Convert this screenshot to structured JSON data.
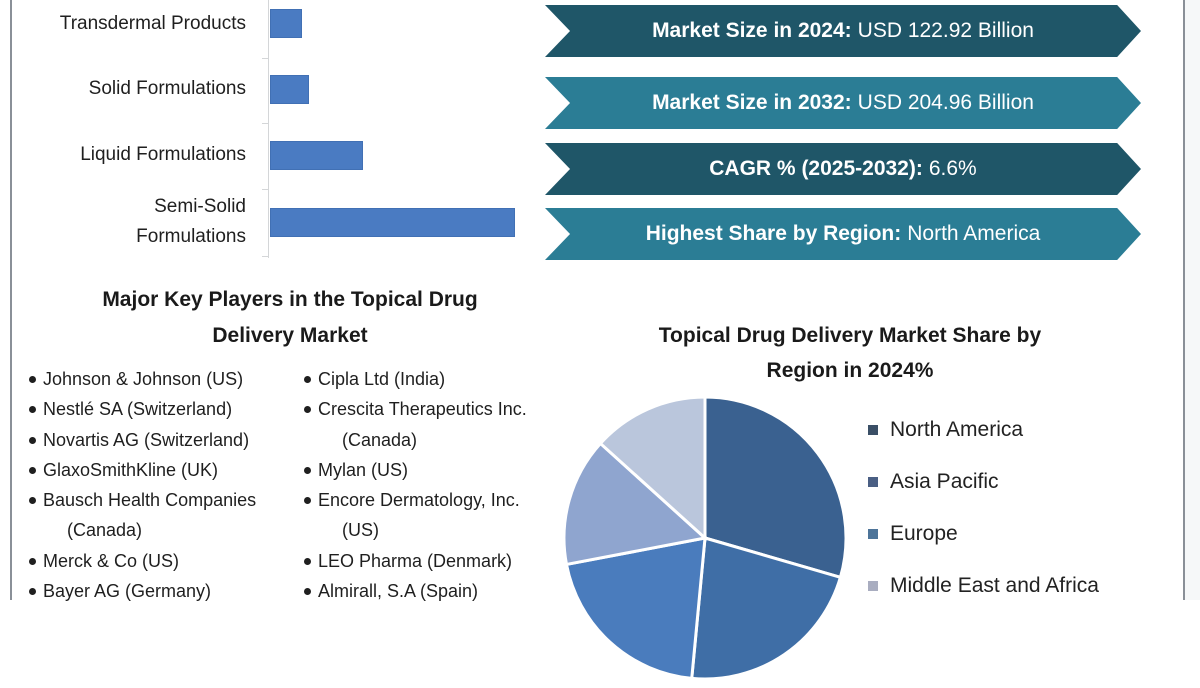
{
  "colors": {
    "bar": "#4a7bc2",
    "banner_dark": "#1f5668",
    "banner_light": "#2b7d95",
    "frame_line": "#8a9098"
  },
  "banners": [
    {
      "key": "Market Size in 2024:",
      "value": "USD 122.92 Billion",
      "style": "dark"
    },
    {
      "key": "Market Size in 2032:",
      "value": "USD 204.96 Billion",
      "style": "light"
    },
    {
      "key": "CAGR % (2025-2032):",
      "value": "6.6%",
      "style": "dark"
    },
    {
      "key": "Highest Share by Region:",
      "value": "North America",
      "style": "light"
    }
  ],
  "key_players": {
    "title_line1": "Major Key Players in the Topical Drug",
    "title_line2": "Delivery Market",
    "column1": [
      {
        "name": "Johnson & Johnson (US)"
      },
      {
        "name": "Nestlé SA (Switzerland)"
      },
      {
        "name": "Novartis AG (Switzerland)"
      },
      {
        "name": "GlaxoSmithKline (UK)"
      },
      {
        "name": "Bausch Health Companies",
        "wrap": "(Canada)"
      },
      {
        "name": "Merck & Co (US)"
      },
      {
        "name": "Bayer AG (Germany)"
      }
    ],
    "column2": [
      {
        "name": "Cipla Ltd (India)"
      },
      {
        "name": "Crescita Therapeutics Inc.",
        "wrap": "(Canada)"
      },
      {
        "name": "Mylan (US)"
      },
      {
        "name": "Encore Dermatology, Inc.",
        "wrap": "(US)"
      },
      {
        "name": "LEO Pharma (Denmark)"
      },
      {
        "name": "Almirall, S.A (Spain)"
      }
    ]
  },
  "chart_data": [
    {
      "type": "bar",
      "orientation": "horizontal",
      "title": "",
      "categories": [
        "Transdermal Products",
        "Solid Formulations",
        "Liquid Formulations",
        "Semi-Solid Formulations"
      ],
      "category_display": [
        "Transdermal Products",
        "Solid Formulations",
        "Liquid Formulations",
        "Semi-Solid\nFormulations"
      ],
      "values": [
        13,
        16,
        38,
        100
      ],
      "value_unit": "relative bar length (no axis values shown)",
      "xlabel": "",
      "ylabel": "",
      "grid": false
    },
    {
      "type": "pie",
      "title": "Topical Drug Delivery Market Share by Region in 2024%",
      "title_line1": "Topical Drug Delivery Market Share by",
      "title_line2": "Region in 2024%",
      "slices": [
        {
          "label": "North America",
          "value": 29.5,
          "color": "#3a6190"
        },
        {
          "label": "Asia Pacific",
          "value": 22.0,
          "color": "#3f6ea6"
        },
        {
          "label": "Europe",
          "value": 20.5,
          "color": "#4a7cbd"
        },
        {
          "label": "(unlabeled, legend cut off)",
          "value": 14.7,
          "color": "#8fa5cf"
        },
        {
          "label": "Middle East and Africa",
          "value": 13.3,
          "color": "#bac6dc"
        }
      ],
      "legend": [
        {
          "label": "North America",
          "color": "#3a4f66"
        },
        {
          "label": "Asia Pacific",
          "color": "#4a5f84"
        },
        {
          "label": "Europe",
          "color": "#4d7499"
        },
        {
          "label": "Middle East and Africa",
          "color": "#a9adc0"
        }
      ],
      "legend_position": "right"
    }
  ]
}
